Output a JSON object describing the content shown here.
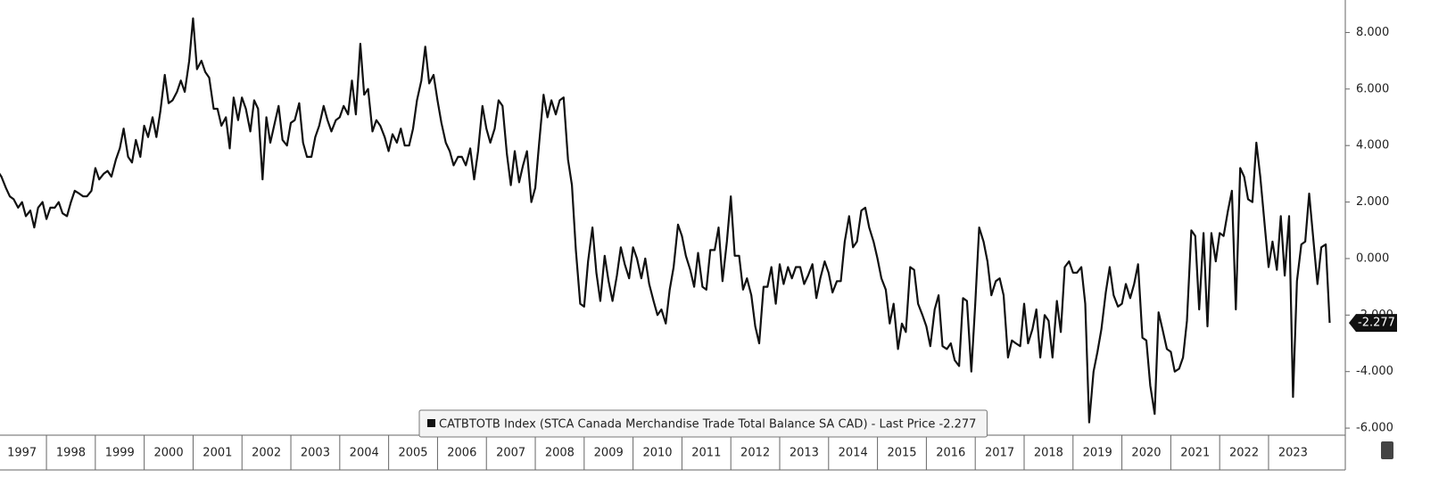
{
  "chart_data": {
    "type": "line",
    "series": [
      {
        "name": "CATBTOTB Index (STCA Canada Merchandise Trade Total Balance SA CAD) - Last Price -2.277",
        "color": "#111111",
        "values": [
          3.1,
          2.9,
          2.5,
          2.2,
          2.1,
          1.8,
          2.0,
          1.5,
          1.7,
          1.1,
          1.8,
          2.0,
          1.4,
          1.8,
          1.8,
          2.0,
          1.6,
          1.5,
          2.0,
          2.4,
          2.3,
          2.2,
          2.2,
          2.4,
          3.2,
          2.8,
          3.0,
          3.1,
          2.9,
          3.5,
          3.9,
          4.6,
          3.6,
          3.4,
          4.2,
          3.6,
          4.7,
          4.3,
          5.0,
          4.3,
          5.2,
          6.5,
          5.5,
          5.6,
          5.9,
          6.3,
          5.9,
          7.0,
          8.5,
          6.7,
          7.0,
          6.6,
          6.4,
          5.3,
          5.3,
          4.7,
          5.0,
          3.9,
          5.7,
          4.9,
          5.7,
          5.3,
          4.5,
          5.6,
          5.3,
          2.8,
          5.0,
          4.1,
          4.8,
          5.4,
          4.2,
          4.0,
          4.8,
          4.9,
          5.5,
          4.1,
          3.6,
          3.6,
          4.3,
          4.7,
          5.4,
          4.9,
          4.5,
          4.9,
          5.0,
          5.4,
          5.1,
          6.3,
          5.1,
          7.6,
          5.8,
          6.0,
          4.5,
          4.9,
          4.7,
          4.3,
          3.8,
          4.4,
          4.1,
          4.6,
          4.0,
          4.0,
          4.6,
          5.6,
          6.3,
          7.5,
          6.2,
          6.5,
          5.6,
          4.8,
          4.1,
          3.8,
          3.3,
          3.6,
          3.6,
          3.3,
          3.9,
          2.8,
          3.8,
          5.4,
          4.6,
          4.1,
          4.6,
          5.6,
          5.4,
          3.7,
          2.6,
          3.8,
          2.7,
          3.3,
          3.8,
          2.0,
          2.5,
          4.1,
          5.8,
          5.0,
          5.6,
          5.1,
          5.6,
          5.7,
          3.5,
          2.6,
          0.3,
          -1.6,
          -1.7,
          -0.1,
          1.1,
          -0.5,
          -1.5,
          0.1,
          -0.8,
          -1.5,
          -0.6,
          0.4,
          -0.2,
          -0.7,
          0.4,
          0.0,
          -0.7,
          0.0,
          -0.9,
          -1.5,
          -2.0,
          -1.8,
          -2.3,
          -1.1,
          -0.3,
          1.2,
          0.8,
          0.1,
          -0.4,
          -1.0,
          0.2,
          -1.0,
          -1.1,
          0.3,
          0.3,
          1.1,
          -0.8,
          0.6,
          2.2,
          0.1,
          0.1,
          -1.1,
          -0.7,
          -1.3,
          -2.4,
          -3.0,
          -1.0,
          -1.0,
          -0.3,
          -1.6,
          -0.2,
          -0.9,
          -0.3,
          -0.7,
          -0.3,
          -0.3,
          -0.9,
          -0.6,
          -0.2,
          -1.4,
          -0.7,
          -0.1,
          -0.5,
          -1.2,
          -0.8,
          -0.8,
          0.6,
          1.5,
          0.4,
          0.6,
          1.7,
          1.8,
          1.1,
          0.6,
          0.0,
          -0.7,
          -1.1,
          -2.3,
          -1.6,
          -3.2,
          -2.3,
          -2.6,
          -0.3,
          -0.4,
          -1.6,
          -2.0,
          -2.4,
          -3.1,
          -1.8,
          -1.3,
          -3.1,
          -3.2,
          -3.0,
          -3.6,
          -3.8,
          -1.4,
          -1.5,
          -4.0,
          -1.6,
          1.1,
          0.6,
          -0.1,
          -1.3,
          -0.8,
          -0.7,
          -1.3,
          -3.5,
          -2.9,
          -3.0,
          -3.1,
          -1.6,
          -3.0,
          -2.5,
          -1.8,
          -3.5,
          -2.0,
          -2.2,
          -3.5,
          -1.5,
          -2.6,
          -0.3,
          -0.1,
          -0.5,
          -0.5,
          -0.3,
          -1.6,
          -5.8,
          -4.0,
          -3.3,
          -2.5,
          -1.2,
          -0.3,
          -1.3,
          -1.7,
          -1.6,
          -0.9,
          -1.4,
          -0.9,
          -0.2,
          -2.8,
          -2.9,
          -4.5,
          -5.5,
          -1.9,
          -2.5,
          -3.2,
          -3.3,
          -4.0,
          -3.9,
          -3.5,
          -2.2,
          1.0,
          0.8,
          -1.8,
          0.9,
          -2.4,
          0.9,
          -0.1,
          0.9,
          0.8,
          1.7,
          2.4,
          -1.8,
          3.2,
          2.9,
          2.1,
          2.0,
          4.1,
          2.9,
          1.2,
          -0.3,
          0.6,
          -0.4,
          1.5,
          -0.6,
          1.5,
          -4.9,
          -0.8,
          0.5,
          0.6,
          2.3,
          0.6,
          -0.9,
          0.4,
          0.5,
          -2.277
        ]
      }
    ],
    "x": [
      1997,
      1997.08,
      1997.17,
      1997.25,
      1997.33,
      1997.42,
      1997.5,
      1997.58,
      1997.67,
      1997.75,
      1997.83,
      1997.92,
      1998,
      1998.08,
      1998.17,
      1998.25,
      1998.33,
      1998.42,
      1998.5,
      1998.58,
      1998.67,
      1998.75,
      1998.83,
      1998.92,
      1999,
      1999.08,
      1999.17,
      1999.25,
      1999.33,
      1999.42,
      1999.5,
      1999.58,
      1999.67,
      1999.75,
      1999.83,
      1999.92,
      2000,
      2000.08,
      2000.17,
      2000.25,
      2000.33,
      2000.42,
      2000.5,
      2000.58,
      2000.67,
      2000.75,
      2000.83,
      2000.92,
      2001,
      2001.08,
      2001.17,
      2001.25,
      2001.33,
      2001.42,
      2001.5,
      2001.58,
      2001.67,
      2001.75,
      2001.83,
      2001.92,
      2002,
      2002.08,
      2002.17,
      2002.25,
      2002.33,
      2002.42,
      2002.5,
      2002.58,
      2002.67,
      2002.75,
      2002.83,
      2002.92,
      2003,
      2003.08,
      2003.17,
      2003.25,
      2003.33,
      2003.42,
      2003.5,
      2003.58,
      2003.67,
      2003.75,
      2003.83,
      2003.92,
      2004,
      2004.08,
      2004.17,
      2004.25,
      2004.33,
      2004.42,
      2004.5,
      2004.58,
      2004.67,
      2004.75,
      2004.83,
      2004.92,
      2005,
      2005.08,
      2005.17,
      2005.25,
      2005.33,
      2005.42,
      2005.5,
      2005.58,
      2005.67,
      2005.75,
      2005.83,
      2005.92,
      2006,
      2006.08,
      2006.17,
      2006.25,
      2006.33,
      2006.42,
      2006.5,
      2006.58,
      2006.67,
      2006.75,
      2006.83,
      2006.92,
      2007,
      2007.08,
      2007.17,
      2007.25,
      2007.33,
      2007.42,
      2007.5,
      2007.58,
      2007.67,
      2007.75,
      2007.83,
      2007.92,
      2008,
      2008.08,
      2008.17,
      2008.25,
      2008.33,
      2008.42,
      2008.5,
      2008.58,
      2008.67,
      2008.75,
      2008.83,
      2008.92,
      2009,
      2009.08,
      2009.17,
      2009.25,
      2009.33,
      2009.42,
      2009.5,
      2009.58,
      2009.67,
      2009.75,
      2009.83,
      2009.92,
      2010,
      2010.08,
      2010.17,
      2010.25,
      2010.33,
      2010.42,
      2010.5,
      2010.58,
      2010.67,
      2010.75,
      2010.83,
      2010.92,
      2011,
      2011.08,
      2011.17,
      2011.25,
      2011.33,
      2011.42,
      2011.5,
      2011.58,
      2011.67,
      2011.75,
      2011.83,
      2011.92,
      2012,
      2012.08,
      2012.17,
      2012.25,
      2012.33,
      2012.42,
      2012.5,
      2012.58,
      2012.67,
      2012.75,
      2012.83,
      2012.92,
      2013,
      2013.08,
      2013.17,
      2013.25,
      2013.33,
      2013.42,
      2013.5,
      2013.58,
      2013.67,
      2013.75,
      2013.83,
      2013.92,
      2014,
      2014.08,
      2014.17,
      2014.25,
      2014.33,
      2014.42,
      2014.5,
      2014.58,
      2014.67,
      2014.75,
      2014.83,
      2014.92,
      2015,
      2015.08,
      2015.17,
      2015.25,
      2015.33,
      2015.42,
      2015.5,
      2015.58,
      2015.67,
      2015.75,
      2015.83,
      2015.92,
      2016,
      2016.08,
      2016.17,
      2016.25,
      2016.33,
      2016.42,
      2016.5,
      2016.58,
      2016.67,
      2016.75,
      2016.83,
      2016.92,
      2017,
      2017.08,
      2017.17,
      2017.25,
      2017.33,
      2017.42,
      2017.5,
      2017.58,
      2017.67,
      2017.75,
      2017.83,
      2017.92,
      2018,
      2018.08,
      2018.17,
      2018.25,
      2018.33,
      2018.42,
      2018.5,
      2018.58,
      2018.67,
      2018.75,
      2018.83,
      2018.92,
      2019,
      2019.08,
      2019.17,
      2019.25,
      2019.33,
      2019.42,
      2019.5,
      2019.58,
      2019.67,
      2019.75,
      2019.83,
      2019.92,
      2020,
      2020.08,
      2020.17,
      2020.25,
      2020.33,
      2020.42,
      2020.5,
      2020.58,
      2020.67,
      2020.75,
      2020.83,
      2020.92,
      2021,
      2021.08,
      2021.17,
      2021.25,
      2021.33,
      2021.42,
      2021.5,
      2021.58,
      2021.67,
      2021.75,
      2021.83,
      2021.92,
      2022,
      2022.08,
      2022.17,
      2022.25,
      2022.33,
      2022.42,
      2022.5,
      2022.58,
      2022.67,
      2022.75,
      2022.83,
      2022.92,
      2023,
      2023.08,
      2023.17,
      2023.25,
      2023.33,
      2023.42,
      2023.5,
      2023.58,
      2023.67,
      2023.75,
      2023.83,
      2023.92,
      2024,
      2024.08,
      2024.17,
      2024.25
    ],
    "xlim": [
      1997.05,
      2024.57
    ],
    "xticks": [
      1997,
      1998,
      1999,
      2000,
      2001,
      2002,
      2003,
      2004,
      2005,
      2006,
      2007,
      2008,
      2009,
      2010,
      2011,
      2012,
      2013,
      2014,
      2015,
      2016,
      2017,
      2018,
      2019,
      2020,
      2021,
      2022,
      2023
    ],
    "ylim": [
      -6.25,
      9.15
    ],
    "yticks": [
      {
        "value": -6,
        "label": "-6.000"
      },
      {
        "value": -4,
        "label": "-4.000"
      },
      {
        "value": -2,
        "label": "-2.000"
      },
      {
        "value": 0,
        "label": "0.000"
      },
      {
        "value": 2,
        "label": "2.000"
      },
      {
        "value": 4,
        "label": "4.000"
      },
      {
        "value": 6,
        "label": "6.000"
      },
      {
        "value": 8,
        "label": "8.000"
      }
    ]
  }
}
